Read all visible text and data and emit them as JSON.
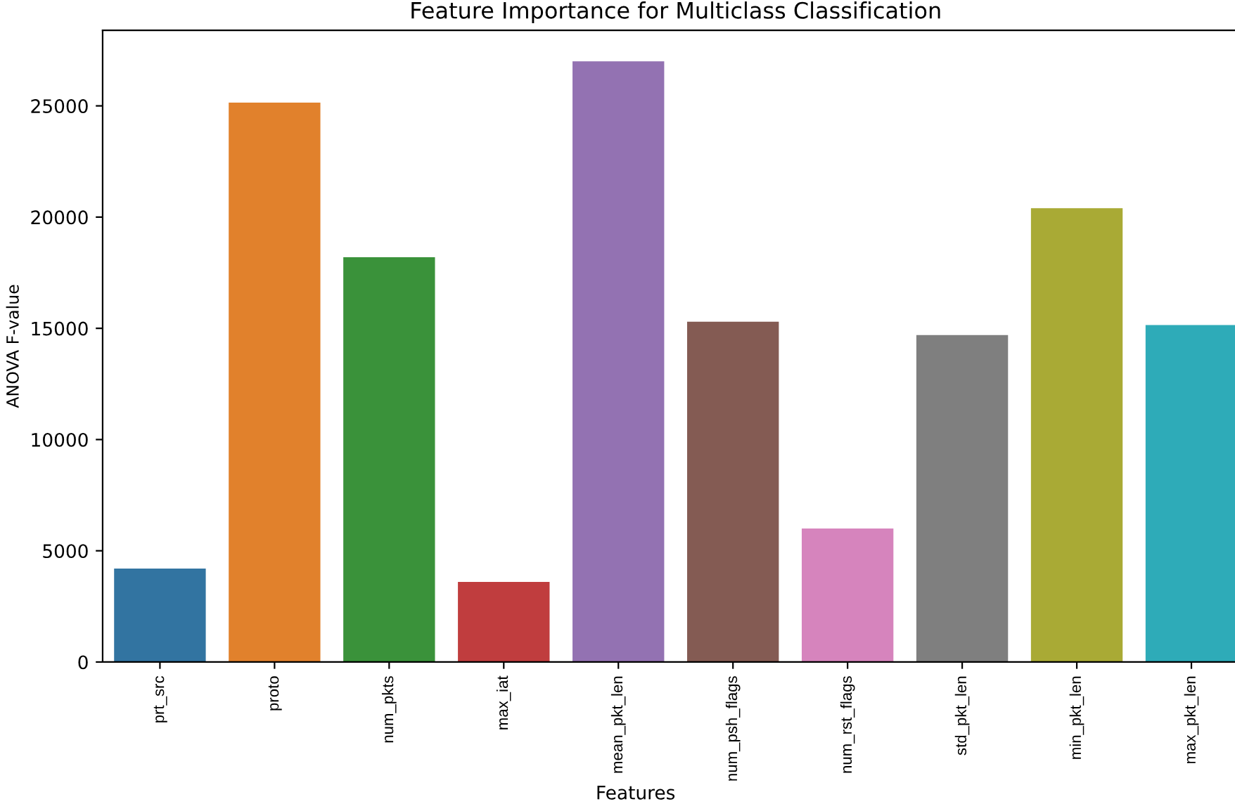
{
  "chart_data": {
    "type": "bar",
    "title": "Feature Importance for Multiclass Classification",
    "xlabel": "Features",
    "ylabel": "ANOVA F-value",
    "categories": [
      "prt_src",
      "proto",
      "num_pkts",
      "max_iat",
      "mean_pkt_len",
      "num_psh_flags",
      "num_rst_flags",
      "std_pkt_len",
      "min_pkt_len",
      "max_pkt_len"
    ],
    "values": [
      4200,
      25150,
      18200,
      3600,
      27000,
      15300,
      6000,
      14700,
      20400,
      15150
    ],
    "colors": [
      "#3274a1",
      "#e1812c",
      "#3a923a",
      "#c03d3e",
      "#9372b2",
      "#845b53",
      "#d684bd",
      "#7f7f7f",
      "#a9aa35",
      "#2eabb8"
    ],
    "ylim": [
      0,
      28400
    ],
    "yticks": [
      0,
      5000,
      10000,
      15000,
      20000,
      25000
    ],
    "grid": false
  }
}
